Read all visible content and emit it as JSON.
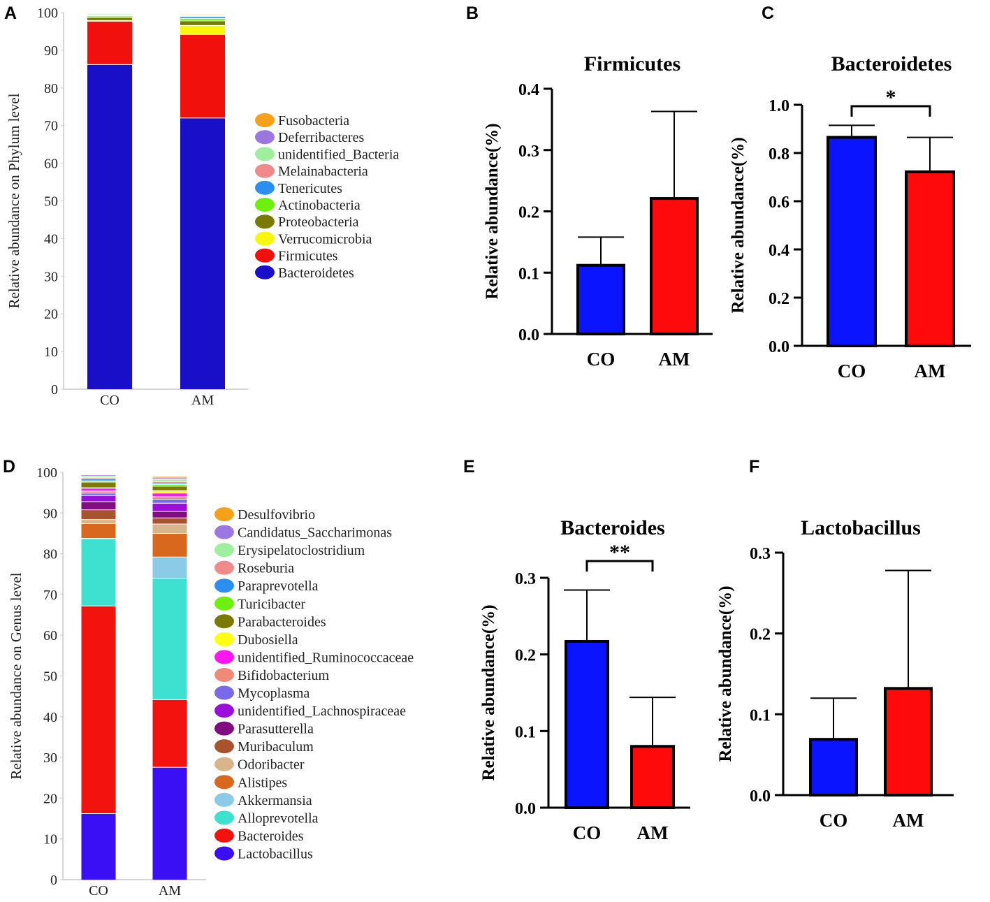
{
  "panels": [
    "A",
    "B",
    "C",
    "D",
    "E",
    "F"
  ],
  "chart_data": [
    {
      "id": "A",
      "type": "bar",
      "stacked": true,
      "categories": [
        "CO",
        "AM"
      ],
      "ylabel": "Relative abundance on Phylum level",
      "ylim": [
        0,
        100
      ],
      "yticks": [
        0,
        10,
        20,
        30,
        40,
        50,
        60,
        70,
        80,
        90,
        100
      ],
      "series": [
        {
          "name": "Bacteroidetes",
          "color": "#1a0fc8",
          "values": [
            86.2,
            72.0
          ]
        },
        {
          "name": "Firmicutes",
          "color": "#f2100c",
          "values": [
            11.5,
            22.2
          ]
        },
        {
          "name": "Verrucomicrobia",
          "color": "#f7f70a",
          "values": [
            0.2,
            2.4
          ]
        },
        {
          "name": "Proteobacteria",
          "color": "#7a7a00",
          "values": [
            0.8,
            1.2
          ]
        },
        {
          "name": "Actinobacteria",
          "color": "#6ef00e",
          "values": [
            0.4,
            0.6
          ]
        },
        {
          "name": "Tenericutes",
          "color": "#2a8ff0",
          "values": [
            0.1,
            0.5
          ]
        },
        {
          "name": "Melainabacteria",
          "color": "#f08a8a",
          "values": [
            0.1,
            0.2
          ]
        },
        {
          "name": "unidentified_Bacteria",
          "color": "#9ef09e",
          "values": [
            0.3,
            0.2
          ]
        },
        {
          "name": "Deferribacteres",
          "color": "#9a78e0",
          "values": [
            0.1,
            0.1
          ]
        },
        {
          "name": "Fusobacteria",
          "color": "#f5a21a",
          "values": [
            0.1,
            0.1
          ]
        }
      ]
    },
    {
      "id": "B",
      "type": "bar",
      "title": "Firmicutes",
      "categories": [
        "CO",
        "AM"
      ],
      "values": [
        0.112,
        0.221
      ],
      "errors": [
        0.046,
        0.142
      ],
      "colors": [
        "#0a14ff",
        "#ff0a0a"
      ],
      "ylabel": "Relative abundance(%)",
      "ylim": [
        0,
        0.4
      ],
      "yticks": [
        "0.0",
        "0.1",
        "0.2",
        "0.3",
        "0.4"
      ],
      "significance": ""
    },
    {
      "id": "C",
      "type": "bar",
      "title": "Bacteroidetes",
      "categories": [
        "CO",
        "AM"
      ],
      "values": [
        0.865,
        0.722
      ],
      "errors": [
        0.05,
        0.143
      ],
      "colors": [
        "#0a14ff",
        "#ff0a0a"
      ],
      "ylabel": "Relative abundance(%)",
      "ylim": [
        0,
        1.0
      ],
      "yticks": [
        "0.0",
        "0.2",
        "0.4",
        "0.6",
        "0.8",
        "1.0"
      ],
      "significance": "*"
    },
    {
      "id": "D",
      "type": "bar",
      "stacked": true,
      "categories": [
        "CO",
        "AM"
      ],
      "ylabel": "Relative abundance on Genus level",
      "ylim": [
        0,
        100
      ],
      "yticks": [
        0,
        10,
        20,
        30,
        40,
        50,
        60,
        70,
        80,
        90,
        100
      ],
      "series": [
        {
          "name": "Lactobacillus",
          "color": "#3a0ff5",
          "values": [
            16.2,
            27.6
          ]
        },
        {
          "name": "Bacteroides",
          "color": "#f2130e",
          "values": [
            51.0,
            16.6
          ]
        },
        {
          "name": "Alloprevotella",
          "color": "#3ee0d0",
          "values": [
            16.5,
            29.8
          ]
        },
        {
          "name": "Akkermansia",
          "color": "#8ccbe8",
          "values": [
            0.1,
            5.2
          ]
        },
        {
          "name": "Alistipes",
          "color": "#d8681e",
          "values": [
            3.6,
            5.8
          ]
        },
        {
          "name": "Odoribacter",
          "color": "#d8b48a",
          "values": [
            1.0,
            2.3
          ]
        },
        {
          "name": "Muribaculum",
          "color": "#a8522e",
          "values": [
            2.4,
            1.5
          ]
        },
        {
          "name": "Parasutterella",
          "color": "#800e80",
          "values": [
            2.0,
            1.6
          ]
        },
        {
          "name": "unidentified_Lachnospiraceae",
          "color": "#9a10d8",
          "values": [
            1.5,
            2.0
          ]
        },
        {
          "name": "Mycoplasma",
          "color": "#7a6ae8",
          "values": [
            0.6,
            1.0
          ]
        },
        {
          "name": "Bifidobacterium",
          "color": "#f08a78",
          "values": [
            0.5,
            0.6
          ]
        },
        {
          "name": "unidentified_Ruminococcaceae",
          "color": "#ff16f0",
          "values": [
            0.7,
            0.9
          ]
        },
        {
          "name": "Dubosiella",
          "color": "#ffff10",
          "values": [
            0.1,
            0.6
          ]
        },
        {
          "name": "Parabacteroides",
          "color": "#7a7a00",
          "values": [
            1.4,
            1.1
          ]
        },
        {
          "name": "Turicibacter",
          "color": "#6ef00e",
          "values": [
            0.3,
            0.4
          ]
        },
        {
          "name": "Paraprevotella",
          "color": "#2a8ff0",
          "values": [
            0.5,
            0.3
          ]
        },
        {
          "name": "Roseburia",
          "color": "#f08a8a",
          "values": [
            0.3,
            0.4
          ]
        },
        {
          "name": "Erysipelatoclostridium",
          "color": "#9ef09e",
          "values": [
            0.4,
            0.5
          ]
        },
        {
          "name": "Candidatus_Saccharimonas",
          "color": "#9a78e0",
          "values": [
            0.3,
            0.4
          ]
        },
        {
          "name": "Desulfovibrio",
          "color": "#f5a21a",
          "values": [
            0.1,
            0.3
          ]
        }
      ]
    },
    {
      "id": "E",
      "type": "bar",
      "title": "Bacteroides",
      "categories": [
        "CO",
        "AM"
      ],
      "values": [
        0.217,
        0.08
      ],
      "errors": [
        0.067,
        0.064
      ],
      "colors": [
        "#0a14ff",
        "#ff0a0a"
      ],
      "ylabel": "Relative abundance(%)",
      "ylim": [
        0,
        0.3
      ],
      "yticks": [
        "0.0",
        "0.1",
        "0.2",
        "0.3"
      ],
      "significance": "**"
    },
    {
      "id": "F",
      "type": "bar",
      "title": "Lactobacillus",
      "categories": [
        "CO",
        "AM"
      ],
      "values": [
        0.069,
        0.132
      ],
      "errors": [
        0.051,
        0.146
      ],
      "colors": [
        "#0a14ff",
        "#ff0a0a"
      ],
      "ylabel": "Relative abundance(%)",
      "ylim": [
        0,
        0.3
      ],
      "yticks": [
        "0.0",
        "0.1",
        "0.2",
        "0.3"
      ],
      "significance": ""
    }
  ]
}
